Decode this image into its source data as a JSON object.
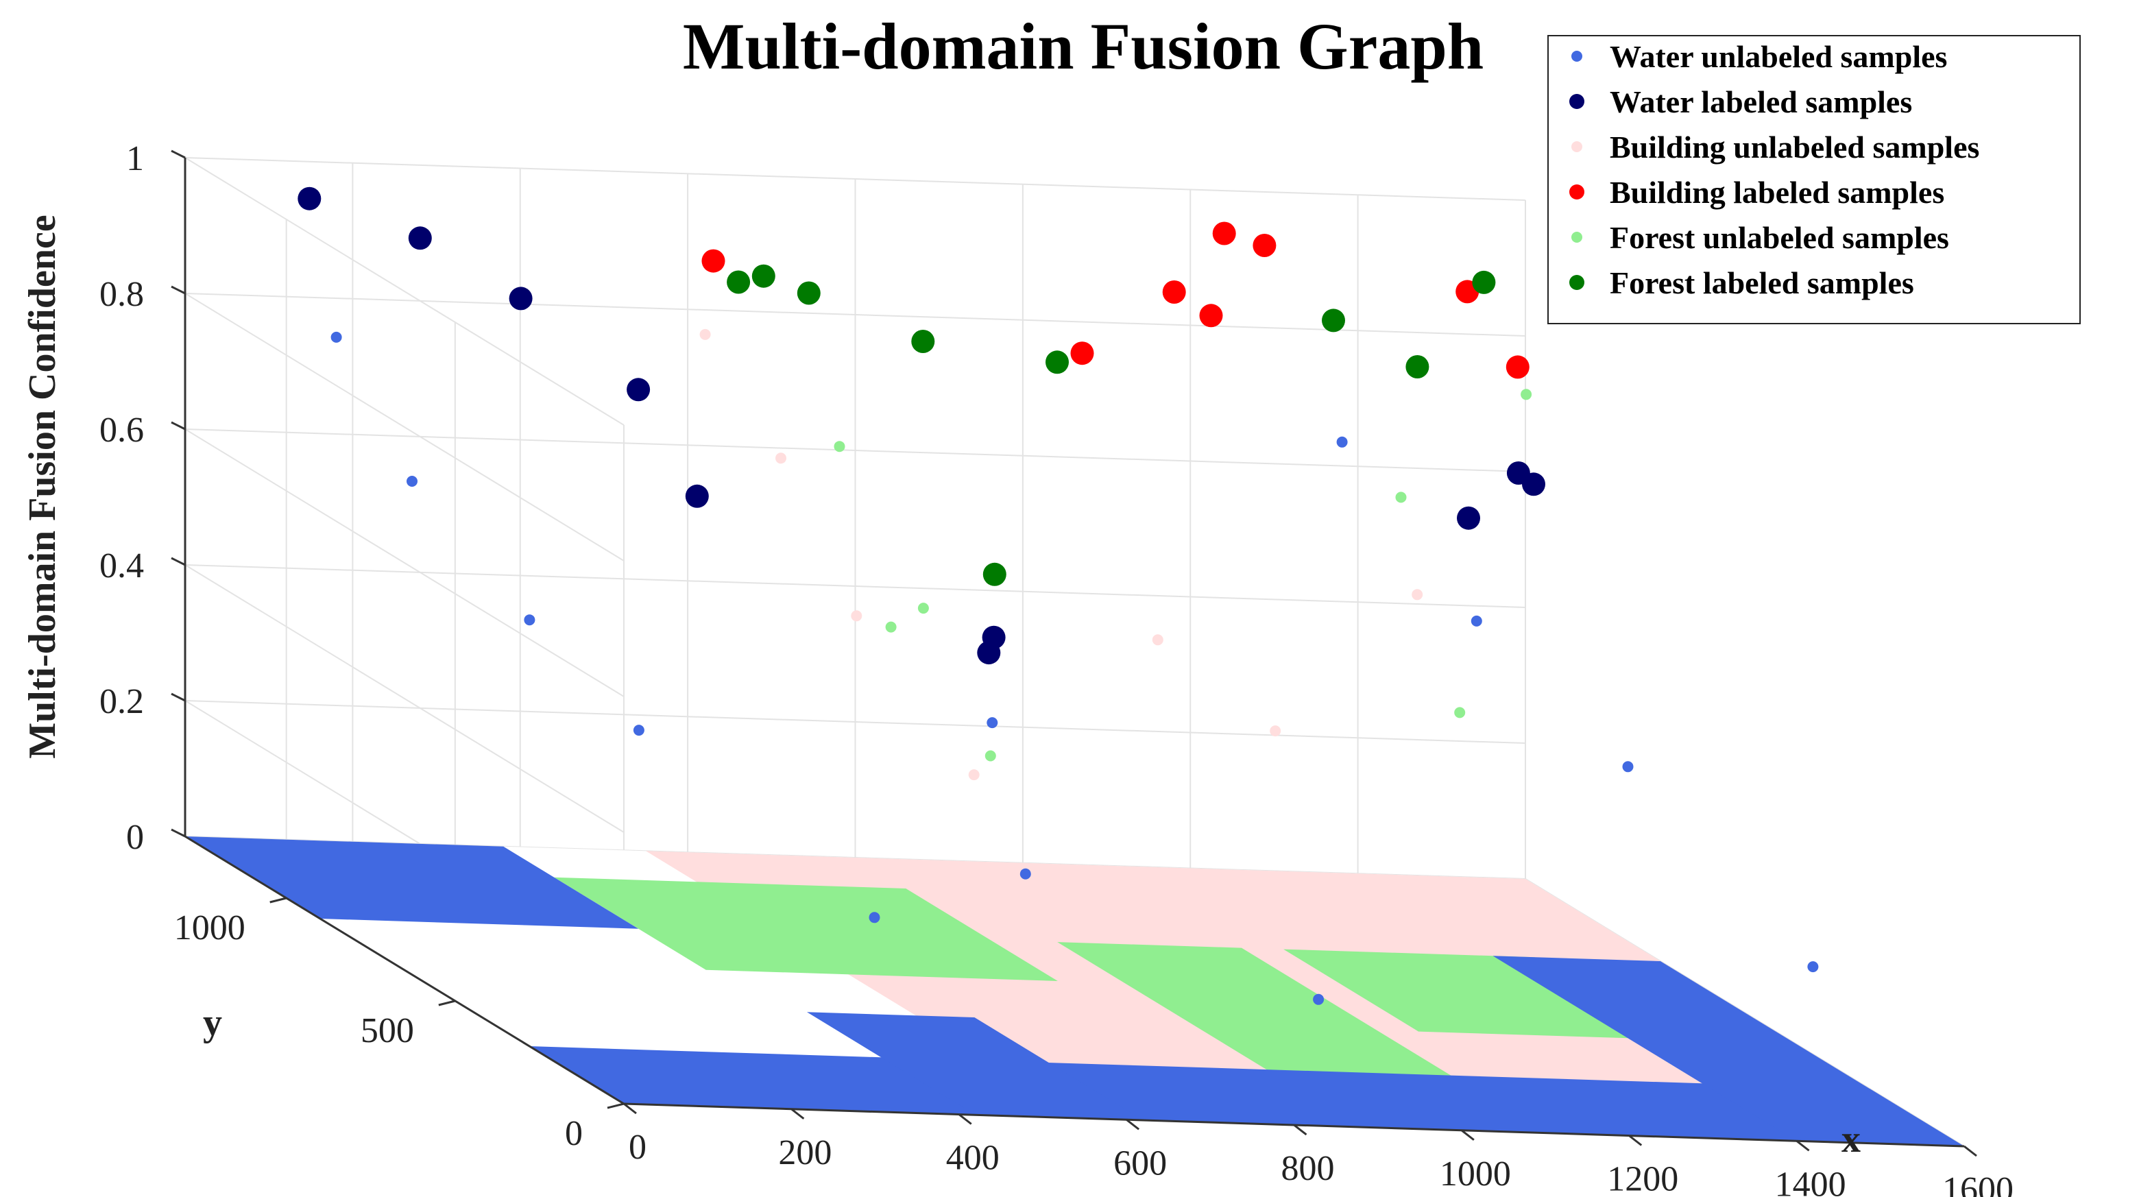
{
  "chart_data": {
    "type": "scatter",
    "title": "Multi-domain Fusion Graph",
    "xlabel": "x",
    "ylabel": "y",
    "zlabel": "Multi-domain Fusion Confidence",
    "xlim": [
      0,
      1600
    ],
    "ylim": [
      0,
      1300
    ],
    "zlim": [
      0,
      1
    ],
    "x_ticks": [
      "0",
      "200",
      "400",
      "600",
      "800",
      "1000",
      "1200",
      "1400",
      "1600"
    ],
    "y_ticks": [
      "0",
      "500",
      "1000"
    ],
    "z_ticks": [
      "0",
      "0.2",
      "0.4",
      "0.6",
      "0.8",
      "1"
    ],
    "grid": true,
    "legend_position": "top-right",
    "series": [
      {
        "name": "Water unlabeled samples",
        "color": "#4169e1",
        "marker": "small-dot",
        "points": [
          {
            "x": 100,
            "y": 1100,
            "z": 0.8
          },
          {
            "x": 150,
            "y": 1000,
            "z": 0.62
          },
          {
            "x": 250,
            "y": 900,
            "z": 0.45
          },
          {
            "x": 300,
            "y": 700,
            "z": 0.35
          },
          {
            "x": 420,
            "y": 300,
            "z": 0.2
          },
          {
            "x": 480,
            "y": 100,
            "z": 0.55
          },
          {
            "x": 560,
            "y": 200,
            "z": 0.3
          },
          {
            "x": 950,
            "y": 300,
            "z": 0.1
          },
          {
            "x": 1220,
            "y": 900,
            "z": 0.75
          },
          {
            "x": 1300,
            "y": 700,
            "z": 0.55
          },
          {
            "x": 1400,
            "y": 500,
            "z": 0.4
          },
          {
            "x": 1500,
            "y": 200,
            "z": 0.2
          }
        ]
      },
      {
        "name": "Water labeled samples",
        "color": "#00006b",
        "marker": "large-dot",
        "points": [
          {
            "x": 100,
            "y": 1180,
            "z": 0.98
          },
          {
            "x": 200,
            "y": 1100,
            "z": 0.95
          },
          {
            "x": 300,
            "y": 1050,
            "z": 0.88
          },
          {
            "x": 400,
            "y": 950,
            "z": 0.78
          },
          {
            "x": 450,
            "y": 900,
            "z": 0.64
          },
          {
            "x": 490,
            "y": 120,
            "z": 0.67
          },
          {
            "x": 480,
            "y": 110,
            "z": 0.65
          },
          {
            "x": 1250,
            "y": 600,
            "z": 0.73
          },
          {
            "x": 1350,
            "y": 700,
            "z": 0.77
          },
          {
            "x": 1360,
            "y": 680,
            "z": 0.76
          }
        ]
      },
      {
        "name": "Building unlabeled samples",
        "color": "#ffdede",
        "marker": "small-dot",
        "points": [
          {
            "x": 500,
            "y": 1000,
            "z": 0.85
          },
          {
            "x": 550,
            "y": 900,
            "z": 0.7
          },
          {
            "x": 600,
            "y": 800,
            "z": 0.5
          },
          {
            "x": 700,
            "y": 700,
            "z": 0.3
          },
          {
            "x": 1000,
            "y": 900,
            "z": 0.45
          },
          {
            "x": 1100,
            "y": 800,
            "z": 0.35
          },
          {
            "x": 1350,
            "y": 1000,
            "z": 0.5
          }
        ]
      },
      {
        "name": "Building labeled samples",
        "color": "#ff0000",
        "marker": "large-dot",
        "points": [
          {
            "x": 550,
            "y": 1100,
            "z": 0.93
          },
          {
            "x": 950,
            "y": 1000,
            "z": 0.84
          },
          {
            "x": 1080,
            "y": 1050,
            "z": 0.92
          },
          {
            "x": 1120,
            "y": 1040,
            "z": 0.89
          },
          {
            "x": 1180,
            "y": 1150,
            "z": 0.98
          },
          {
            "x": 1220,
            "y": 1130,
            "z": 0.97
          },
          {
            "x": 1450,
            "y": 1100,
            "z": 0.92
          },
          {
            "x": 1470,
            "y": 1000,
            "z": 0.84
          }
        ]
      },
      {
        "name": "Forest unlabeled samples",
        "color": "#90ee90",
        "marker": "small-dot",
        "points": [
          {
            "x": 620,
            "y": 900,
            "z": 0.72
          },
          {
            "x": 700,
            "y": 850,
            "z": 0.5
          },
          {
            "x": 760,
            "y": 800,
            "z": 0.3
          },
          {
            "x": 480,
            "y": 400,
            "z": 0.6
          },
          {
            "x": 1250,
            "y": 800,
            "z": 0.7
          },
          {
            "x": 1300,
            "y": 750,
            "z": 0.4
          },
          {
            "x": 1480,
            "y": 1000,
            "z": 0.8
          }
        ]
      },
      {
        "name": "Forest labeled samples",
        "color": "#007a00",
        "marker": "large-dot",
        "points": [
          {
            "x": 580,
            "y": 1100,
            "z": 0.9
          },
          {
            "x": 610,
            "y": 1100,
            "z": 0.91
          },
          {
            "x": 660,
            "y": 1090,
            "z": 0.89
          },
          {
            "x": 760,
            "y": 1000,
            "z": 0.85
          },
          {
            "x": 900,
            "y": 950,
            "z": 0.84
          },
          {
            "x": 495,
            "y": 130,
            "z": 0.76
          },
          {
            "x": 1250,
            "y": 1000,
            "z": 0.9
          },
          {
            "x": 1330,
            "y": 950,
            "z": 0.85
          },
          {
            "x": 1490,
            "y": 1150,
            "z": 0.92
          }
        ]
      }
    ]
  }
}
